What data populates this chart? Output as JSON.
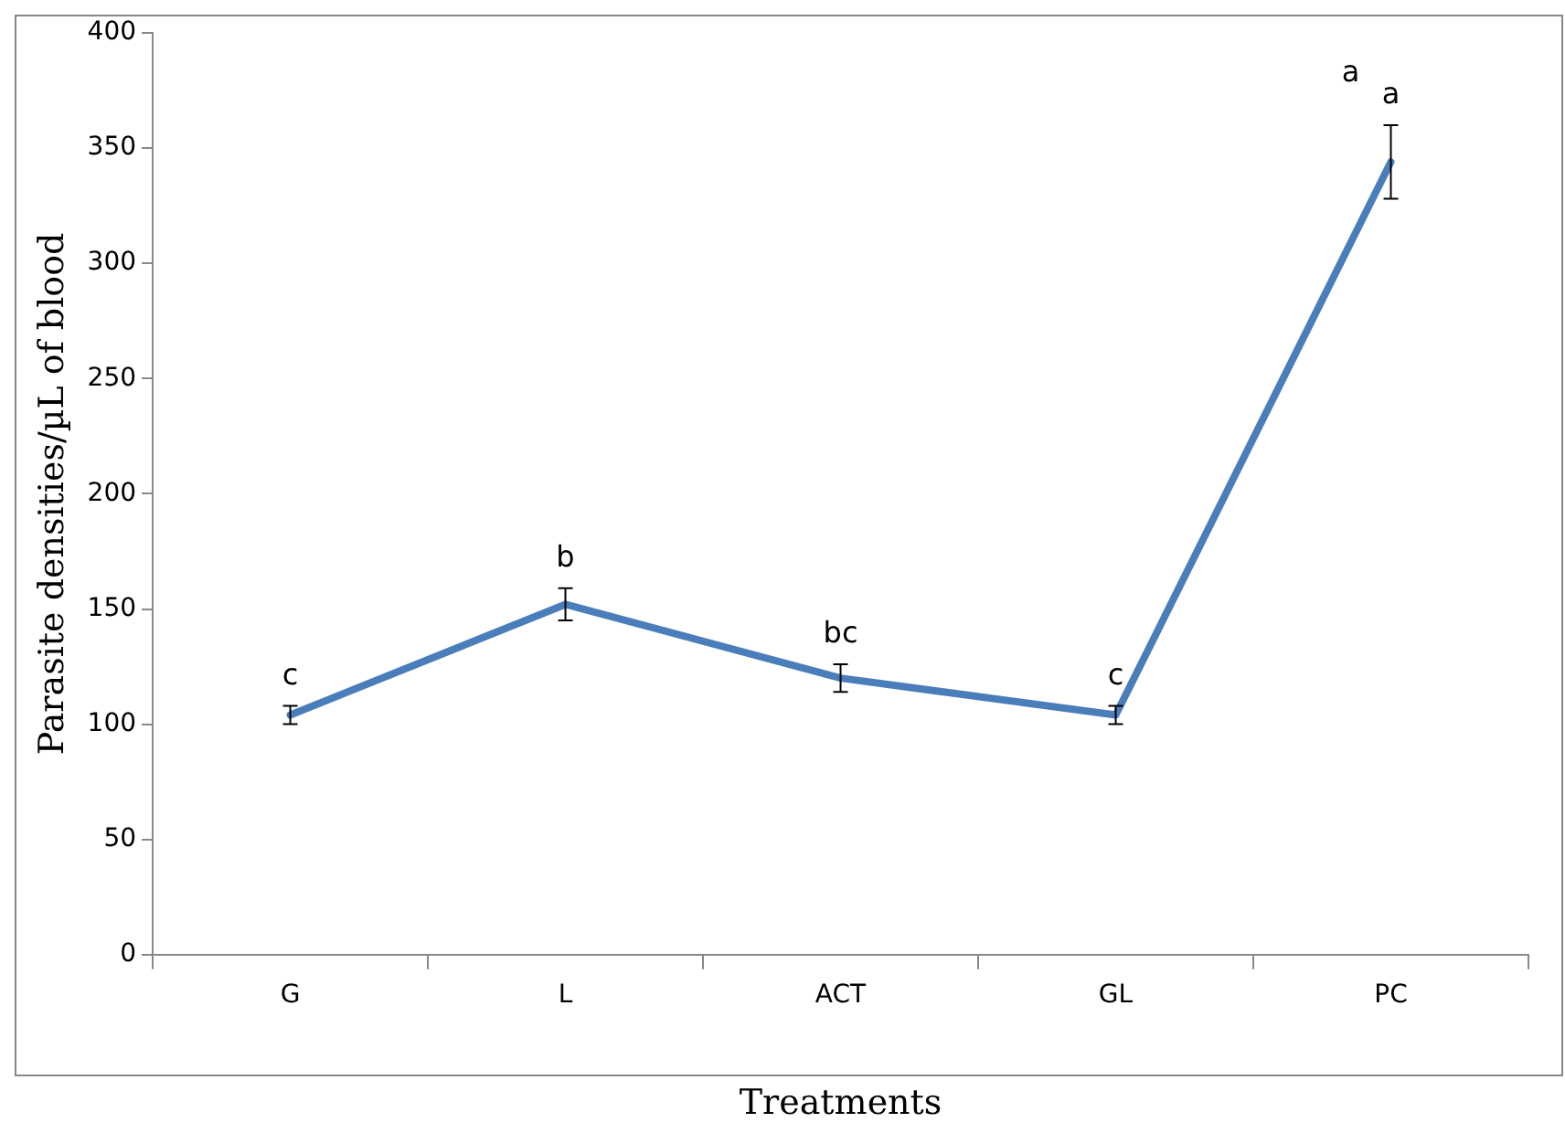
{
  "chart_data": {
    "type": "line",
    "xlabel": "Treatments",
    "ylabel": "Parasite densities/µL of blood",
    "categories": [
      "G",
      "L",
      "ACT",
      "GL",
      "PC"
    ],
    "series": [
      {
        "color": "#4a7ebb",
        "values": [
          104,
          152,
          120,
          104,
          344
        ],
        "errors": [
          4,
          7,
          6,
          4,
          16
        ]
      }
    ],
    "ylim": [
      0,
      400
    ],
    "yticks": [
      0,
      50,
      100,
      150,
      200,
      250,
      300,
      350,
      400
    ],
    "grid": false,
    "legend": false,
    "marker": "none",
    "line_style": "solid",
    "annotations": [
      {
        "text": "c",
        "x": "G",
        "y": 104
      },
      {
        "text": "b",
        "x": "L",
        "y": 152
      },
      {
        "text": "bc",
        "x": "ACT",
        "y": 120
      },
      {
        "text": "c",
        "x": "GL",
        "y": 104
      },
      {
        "text": "a",
        "x": "PC",
        "y": 344
      },
      {
        "text": "a",
        "x": "PC",
        "y": 344
      }
    ]
  }
}
